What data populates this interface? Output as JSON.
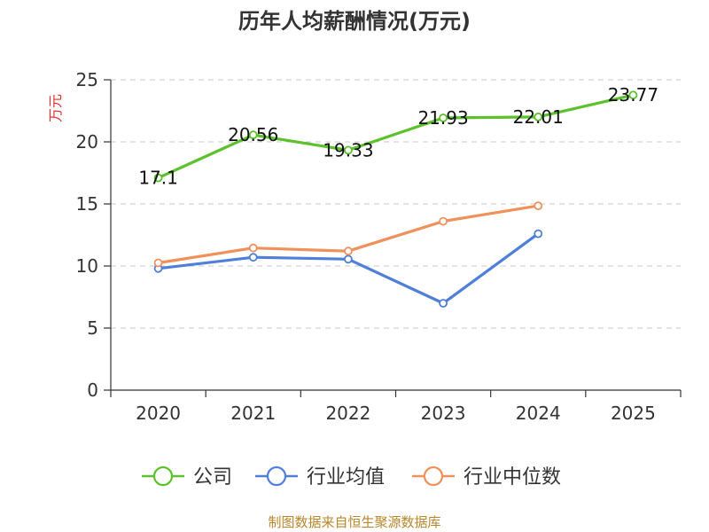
{
  "chart_data": {
    "type": "line",
    "title": "历年人均薪酬情况(万元)",
    "ylabel": "万元",
    "xlabel": "",
    "categories": [
      "2020",
      "2021",
      "2022",
      "2023",
      "2024",
      "2025"
    ],
    "ylim": [
      0,
      25
    ],
    "yticks": [
      0,
      5,
      10,
      15,
      20,
      25
    ],
    "grid": "horizontal-dashed",
    "legend_position": "bottom",
    "series": [
      {
        "name": "公司",
        "color": "#5cc12c",
        "values": [
          17.1,
          20.56,
          19.33,
          21.93,
          22.01,
          23.77
        ],
        "labels": [
          "17.1",
          "20.56",
          "19.33",
          "21.93",
          "22.01",
          "23.77"
        ]
      },
      {
        "name": "行业均值",
        "color": "#4f7fd8",
        "values": [
          9.8,
          10.7,
          10.55,
          7.0,
          12.6,
          null
        ]
      },
      {
        "name": "行业中位数",
        "color": "#f0905a",
        "values": [
          10.25,
          11.45,
          11.2,
          13.6,
          14.85,
          null
        ]
      }
    ],
    "source": "制图数据来自恒生聚源数据库"
  }
}
